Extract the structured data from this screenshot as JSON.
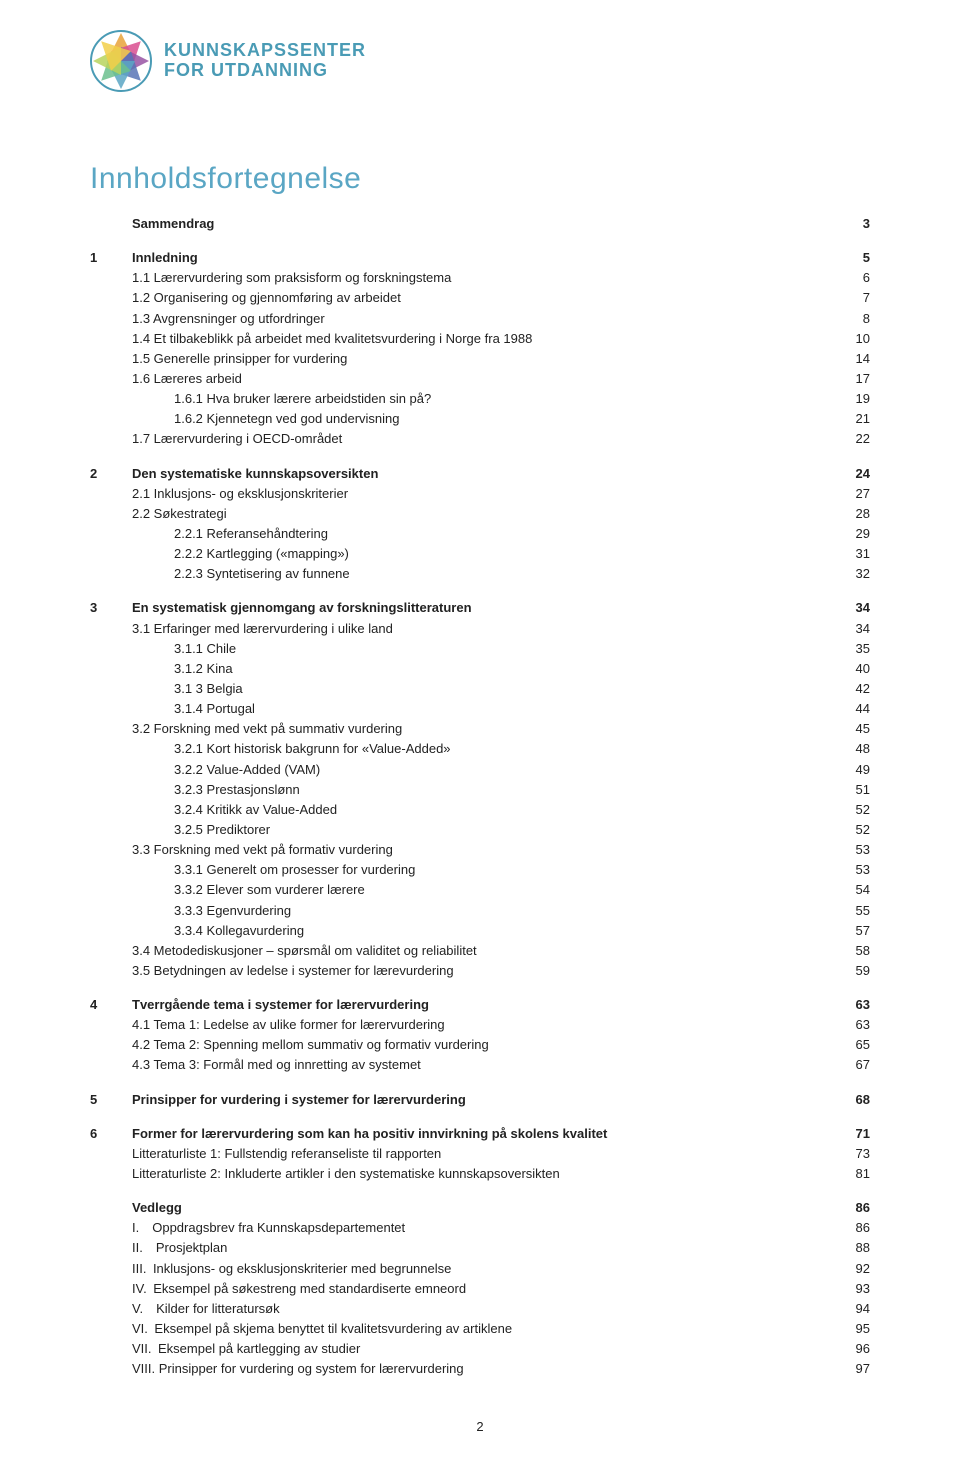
{
  "brand": {
    "line1": "KUNNSKAPSSENTER",
    "line2": "FOR UTDANNING",
    "text_color": "#4a9bb5",
    "logo_border_color": "#4a9bb5",
    "logo_colors": [
      "#e8a23a",
      "#d94e8f",
      "#9854a3",
      "#5874b6",
      "#5aa6c4",
      "#6bbf8e",
      "#b7d35e",
      "#f2cf4a"
    ]
  },
  "title": {
    "text": "Innholdsfortegnelse",
    "color": "#5aa6c4",
    "fontsize": 30
  },
  "toc_fontsize": 13,
  "text_color": "#222",
  "background_color": "#ffffff",
  "entries": [
    {
      "num": "",
      "text": "Sammendrag",
      "page": "3",
      "bold": true,
      "indent": 1,
      "gap": false
    },
    {
      "num": "1",
      "text": "Innledning",
      "page": "5",
      "bold": true,
      "indent": 0,
      "gap": true
    },
    {
      "num": "",
      "text": "1.1 Lærervurdering som praksisform og forskningstema",
      "page": "6",
      "bold": false,
      "indent": 1,
      "gap": false
    },
    {
      "num": "",
      "text": "1.2 Organisering og gjennomføring av arbeidet",
      "page": "7",
      "bold": false,
      "indent": 1,
      "gap": false
    },
    {
      "num": "",
      "text": "1.3 Avgrensninger og utfordringer",
      "page": "8",
      "bold": false,
      "indent": 1,
      "gap": false
    },
    {
      "num": "",
      "text": "1.4 Et tilbakeblikk på arbeidet med kvalitetsvurdering i Norge fra 1988",
      "page": "10",
      "bold": false,
      "indent": 1,
      "gap": false
    },
    {
      "num": "",
      "text": "1.5 Generelle prinsipper for vurdering",
      "page": "14",
      "bold": false,
      "indent": 1,
      "gap": false
    },
    {
      "num": "",
      "text": "1.6 Læreres arbeid",
      "page": "17",
      "bold": false,
      "indent": 1,
      "gap": false
    },
    {
      "num": "",
      "text": "1.6.1 Hva bruker lærere arbeidstiden sin på?",
      "page": "19",
      "bold": false,
      "indent": 2,
      "gap": false
    },
    {
      "num": "",
      "text": "1.6.2 Kjennetegn ved god undervisning",
      "page": "21",
      "bold": false,
      "indent": 2,
      "gap": false
    },
    {
      "num": "",
      "text": "1.7 Lærervurdering i OECD-området",
      "page": "22",
      "bold": false,
      "indent": 1,
      "gap": false
    },
    {
      "num": "2",
      "text": "Den systematiske kunnskapsoversikten",
      "page": "24",
      "bold": true,
      "indent": 0,
      "gap": true
    },
    {
      "num": "",
      "text": "2.1 Inklusjons- og eksklusjonskriterier",
      "page": "27",
      "bold": false,
      "indent": 1,
      "gap": false
    },
    {
      "num": "",
      "text": "2.2 Søkestrategi",
      "page": "28",
      "bold": false,
      "indent": 1,
      "gap": false
    },
    {
      "num": "",
      "text": "2.2.1 Referansehåndtering",
      "page": "29",
      "bold": false,
      "indent": 2,
      "gap": false
    },
    {
      "num": "",
      "text": "2.2.2 Kartlegging («mapping»)",
      "page": "31",
      "bold": false,
      "indent": 2,
      "gap": false
    },
    {
      "num": "",
      "text": "2.2.3 Syntetisering av funnene",
      "page": "32",
      "bold": false,
      "indent": 2,
      "gap": false
    },
    {
      "num": "3",
      "text": "En systematisk gjennomgang av forskningslitteraturen",
      "page": "34",
      "bold": true,
      "indent": 0,
      "gap": true
    },
    {
      "num": "",
      "text": "3.1 Erfaringer med lærervurdering i ulike land",
      "page": "34",
      "bold": false,
      "indent": 1,
      "gap": false
    },
    {
      "num": "",
      "text": "3.1.1 Chile",
      "page": "35",
      "bold": false,
      "indent": 2,
      "gap": false
    },
    {
      "num": "",
      "text": "3.1.2 Kina",
      "page": "40",
      "bold": false,
      "indent": 2,
      "gap": false
    },
    {
      "num": "",
      "text": "3.1 3 Belgia",
      "page": "42",
      "bold": false,
      "indent": 2,
      "gap": false
    },
    {
      "num": "",
      "text": "3.1.4 Portugal",
      "page": "44",
      "bold": false,
      "indent": 2,
      "gap": false
    },
    {
      "num": "",
      "text": "3.2 Forskning med vekt på summativ vurdering",
      "page": "45",
      "bold": false,
      "indent": 1,
      "gap": false
    },
    {
      "num": "",
      "text": "3.2.1 Kort historisk bakgrunn for «Value-Added»",
      "page": "48",
      "bold": false,
      "indent": 2,
      "gap": false
    },
    {
      "num": "",
      "text": "3.2.2 Value-Added (VAM)",
      "page": "49",
      "bold": false,
      "indent": 2,
      "gap": false
    },
    {
      "num": "",
      "text": "3.2.3 Prestasjonslønn",
      "page": "51",
      "bold": false,
      "indent": 2,
      "gap": false
    },
    {
      "num": "",
      "text": "3.2.4 Kritikk av Value-Added",
      "page": "52",
      "bold": false,
      "indent": 2,
      "gap": false
    },
    {
      "num": "",
      "text": "3.2.5 Prediktorer",
      "page": "52",
      "bold": false,
      "indent": 2,
      "gap": false
    },
    {
      "num": "",
      "text": "3.3 Forskning med vekt på formativ vurdering",
      "page": "53",
      "bold": false,
      "indent": 1,
      "gap": false
    },
    {
      "num": "",
      "text": "3.3.1 Generelt om prosesser for vurdering",
      "page": "53",
      "bold": false,
      "indent": 2,
      "gap": false
    },
    {
      "num": "",
      "text": "3.3.2 Elever som vurderer lærere",
      "page": "54",
      "bold": false,
      "indent": 2,
      "gap": false
    },
    {
      "num": "",
      "text": "3.3.3 Egenvurdering",
      "page": "55",
      "bold": false,
      "indent": 2,
      "gap": false
    },
    {
      "num": "",
      "text": "3.3.4 Kollegavurdering",
      "page": "57",
      "bold": false,
      "indent": 2,
      "gap": false
    },
    {
      "num": "",
      "text": "3.4 Metodediskusjoner – spørsmål om validitet og reliabilitet",
      "page": "58",
      "bold": false,
      "indent": 1,
      "gap": false
    },
    {
      "num": "",
      "text": "3.5 Betydningen av ledelse i systemer for lærevurdering",
      "page": "59",
      "bold": false,
      "indent": 1,
      "gap": false
    },
    {
      "num": "4",
      "text": "Tverrgående tema i systemer for lærervurdering",
      "page": "63",
      "bold": true,
      "indent": 0,
      "gap": true
    },
    {
      "num": "",
      "text": "4.1 Tema 1: Ledelse av ulike former for lærervurdering",
      "page": "63",
      "bold": false,
      "indent": 1,
      "gap": false
    },
    {
      "num": "",
      "text": "4.2 Tema 2: Spenning mellom summativ og formativ vurdering",
      "page": "65",
      "bold": false,
      "indent": 1,
      "gap": false
    },
    {
      "num": "",
      "text": "4.3 Tema 3: Formål med og innretting av systemet",
      "page": "67",
      "bold": false,
      "indent": 1,
      "gap": false
    },
    {
      "num": "5",
      "text": "Prinsipper for vurdering i systemer for lærervurdering",
      "page": "68",
      "bold": true,
      "indent": 0,
      "gap": true
    },
    {
      "num": "6",
      "text": "Former for lærervurdering som kan ha positiv innvirkning på skolens kvalitet",
      "page": "71",
      "bold": true,
      "indent": 0,
      "gap": true
    },
    {
      "num": "",
      "text": "Litteraturliste 1: Fullstendig referanseliste til rapporten",
      "page": "73",
      "bold": false,
      "indent": 1,
      "gap": false
    },
    {
      "num": "",
      "text": "Litteraturliste 2: Inkluderte artikler i den systematiske kunnskapsoversikten",
      "page": "81",
      "bold": false,
      "indent": 1,
      "gap": false
    },
    {
      "num": "",
      "text": "Vedlegg",
      "page": "86",
      "bold": true,
      "indent": 1,
      "gap": true
    },
    {
      "num": "",
      "text": "I. Oppdragsbrev fra Kunnskapsdepartementet",
      "page": "86",
      "bold": false,
      "indent": 1,
      "gap": false
    },
    {
      "num": "",
      "text": "II. Prosjektplan",
      "page": "88",
      "bold": false,
      "indent": 1,
      "gap": false
    },
    {
      "num": "",
      "text": "III. Inklusjons- og eksklusjonskriterier med begrunnelse",
      "page": "92",
      "bold": false,
      "indent": 1,
      "gap": false
    },
    {
      "num": "",
      "text": "IV. Eksempel på søkestreng med standardiserte emneord",
      "page": "93",
      "bold": false,
      "indent": 1,
      "gap": false
    },
    {
      "num": "",
      "text": "V. Kilder for litteratursøk",
      "page": "94",
      "bold": false,
      "indent": 1,
      "gap": false
    },
    {
      "num": "",
      "text": "VI. Eksempel på skjema benyttet til kvalitetsvurdering av artiklene",
      "page": "95",
      "bold": false,
      "indent": 1,
      "gap": false
    },
    {
      "num": "",
      "text": "VII. Eksempel på kartlegging av studier",
      "page": "96",
      "bold": false,
      "indent": 1,
      "gap": false
    },
    {
      "num": "",
      "text": "VIII. Prinsipper for vurdering og system for lærervurdering",
      "page": "97",
      "bold": false,
      "indent": 1,
      "gap": false
    }
  ],
  "footer_page": "2"
}
